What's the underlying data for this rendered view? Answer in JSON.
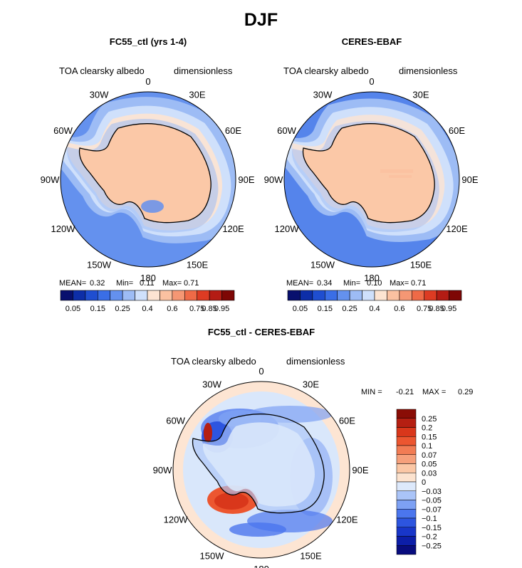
{
  "title": "DJF",
  "colors": {
    "abs": [
      "#08106e",
      "#0d2ea8",
      "#1f4ed0",
      "#3a6ee6",
      "#6491ee",
      "#9dbcf5",
      "#cfe0fb",
      "#fde4d2",
      "#fbc1a1",
      "#f59774",
      "#ef6a47",
      "#dd3b23",
      "#b41c14",
      "#7e0705"
    ],
    "diff": [
      "#080c7e",
      "#0c1ea8",
      "#1836c9",
      "#2d55df",
      "#4b76ee",
      "#7da1f4",
      "#aac4f8",
      "#dde9fb",
      "#fce3cf",
      "#fbc7a5",
      "#f6a07b",
      "#f27c54",
      "#ec5630",
      "#d9371b",
      "#b51f12",
      "#8a0d06"
    ],
    "ocean_abs": "#2a5fde",
    "ice_abs": "#fbc8a7",
    "diff_bg_light_blue": "#d9e7fb",
    "diff_bg_peach": "#fde5d3"
  },
  "panels": [
    {
      "name": "FC55_ctl (yrs 1-4)",
      "variable": "TOA clearsky albedo",
      "units": "dimensionless",
      "stats": {
        "mean_label": "MEAN=",
        "mean": "0.32",
        "min_label": "Min=",
        "min": "0.11",
        "max_label": "Max=",
        "max": "0.71"
      }
    },
    {
      "name": "CERES-EBAF",
      "variable": "TOA clearsky albedo",
      "units": "dimensionless",
      "stats": {
        "mean_label": "MEAN=",
        "mean": "0.34",
        "min_label": "Min=",
        "min": "0.10",
        "max_label": "Max=",
        "max": "0.71"
      }
    }
  ],
  "abs_colorbar_labels": [
    "0.05",
    "0.15",
    "0.25",
    "0.4",
    "0.6",
    "0.75",
    "0.85",
    "0.95"
  ],
  "diff_panel": {
    "name": "FC55_ctl - CERES-EBAF",
    "variable": "TOA clearsky albedo",
    "units": "dimensionless",
    "min_label": "MIN =",
    "min": "-0.21",
    "max_label": "MAX =",
    "max": "0.29",
    "colorbar_labels": [
      "0.25",
      "0.2",
      "0.15",
      "0.1",
      "0.07",
      "0.05",
      "0.03",
      "0",
      "-0.03",
      "-0.05",
      "-0.07",
      "-0.1",
      "-0.15",
      "-0.2",
      "-0.25"
    ]
  },
  "lon_labels": [
    "0",
    "30E",
    "60E",
    "90E",
    "120E",
    "150E",
    "180",
    "150W",
    "120W",
    "90W",
    "60W",
    "30W"
  ]
}
